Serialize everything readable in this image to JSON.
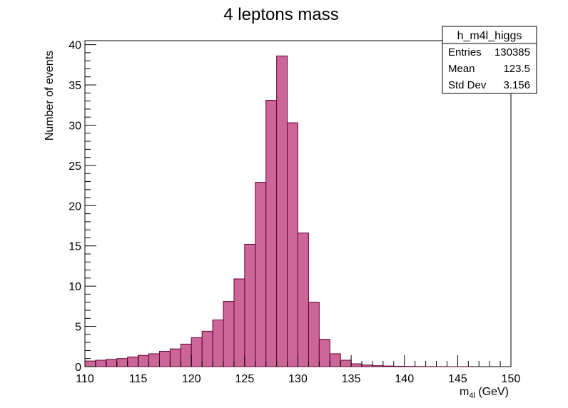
{
  "chart_data": {
    "type": "bar",
    "title": "4 leptons mass",
    "xlabel": "m",
    "xlabel_sub": "4l",
    "xlabel_unit": " (GeV)",
    "ylabel": "Number of events",
    "xlim": [
      110,
      150
    ],
    "ylim": [
      0,
      40.5
    ],
    "x_ticks": [
      110,
      115,
      120,
      125,
      130,
      135,
      140,
      145,
      150
    ],
    "y_ticks": [
      0,
      5,
      10,
      15,
      20,
      25,
      30,
      35,
      40
    ],
    "bin_width": 1,
    "bin_edges_start": 110,
    "values": [
      0.7,
      0.8,
      0.9,
      1.0,
      1.2,
      1.4,
      1.6,
      1.9,
      2.2,
      2.8,
      3.6,
      4.4,
      5.8,
      8.1,
      10.9,
      15.2,
      22.9,
      33.1,
      38.6,
      30.3,
      16.6,
      8.0,
      3.4,
      1.6,
      0.8,
      0.35,
      0.2,
      0.12,
      0.08,
      0.05,
      0.03,
      0.02,
      0.01,
      0.01,
      0.005,
      0.005,
      0.0,
      0.0,
      0.0,
      0.0
    ],
    "grid": false,
    "fill_color": "#cc6699",
    "line_color": "#660033"
  },
  "stats_box": {
    "name": "h_m4l_higgs",
    "rows": [
      {
        "label": "Entries",
        "value": "130385"
      },
      {
        "label": "Mean",
        "value": "123.5"
      },
      {
        "label": "Std Dev",
        "value": "3.156"
      }
    ]
  }
}
